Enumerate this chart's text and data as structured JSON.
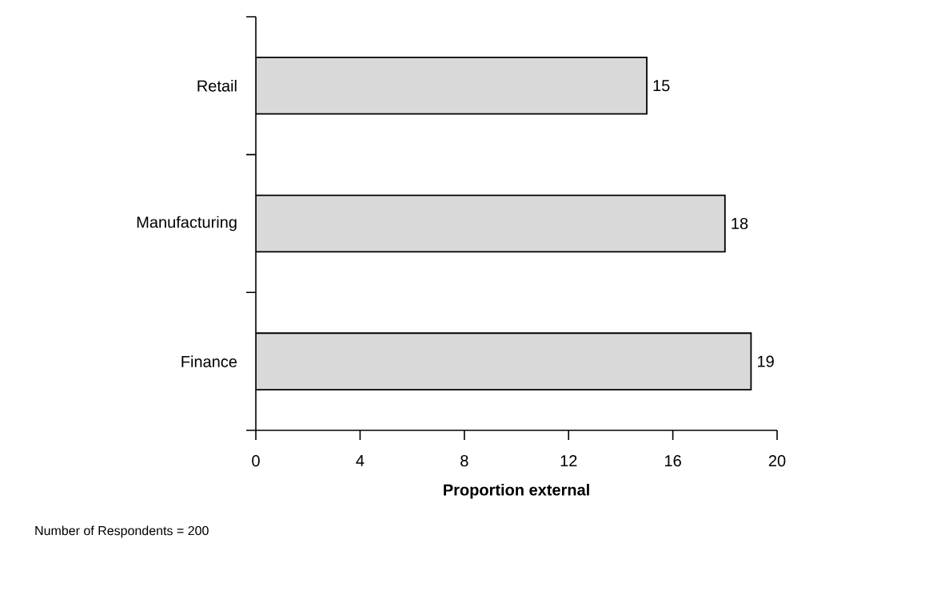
{
  "chart_data": {
    "type": "bar",
    "orientation": "horizontal",
    "categories": [
      "Retail",
      "Manufacturing",
      "Finance"
    ],
    "values": [
      15,
      18,
      19
    ],
    "color": "#d9d9d9",
    "xlim": [
      0,
      20
    ],
    "xticks": [
      0,
      4,
      8,
      12,
      16,
      20
    ],
    "xlabel": "Proportion external",
    "value_labels": [
      "15",
      "18",
      "19"
    ],
    "grid": false,
    "annotations": [
      "Number of Respondents = 200"
    ]
  }
}
